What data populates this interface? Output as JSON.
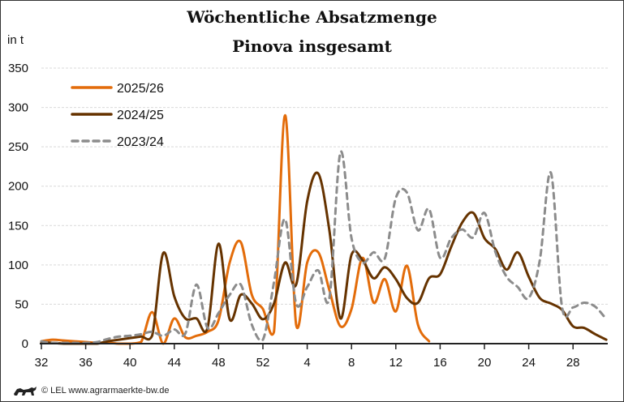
{
  "chart_data": {
    "type": "line",
    "title": [
      "Wöchentliche Absatzmenge",
      "Pinova insgesamt"
    ],
    "ylabel": "in t",
    "xlabel": "",
    "ylim": [
      0,
      350
    ],
    "yticks": [
      0,
      50,
      100,
      150,
      200,
      250,
      300,
      350
    ],
    "x_weeks": [
      32,
      33,
      34,
      35,
      36,
      37,
      38,
      39,
      40,
      41,
      42,
      43,
      44,
      45,
      46,
      47,
      48,
      49,
      50,
      51,
      52,
      1,
      2,
      3,
      4,
      5,
      6,
      7,
      8,
      9,
      10,
      11,
      12,
      13,
      14,
      15,
      16,
      17,
      18,
      19,
      20,
      21,
      22,
      23,
      24,
      25,
      26,
      27,
      28,
      29,
      30,
      31
    ],
    "xtick_labels": [
      "32",
      "36",
      "40",
      "44",
      "48",
      "52",
      "4",
      "8",
      "12",
      "16",
      "20",
      "24",
      "28"
    ],
    "grid": true,
    "legend_position": "top-left",
    "series": [
      {
        "name": "2025/26",
        "color": "#E36C0A",
        "dashed": false,
        "values": [
          3,
          5,
          4,
          3,
          2,
          1,
          1,
          0,
          0,
          2,
          40,
          0,
          32,
          8,
          10,
          15,
          30,
          103,
          129,
          62,
          44,
          15,
          290,
          24,
          103,
          116,
          68,
          22,
          44,
          109,
          52,
          82,
          41,
          99,
          24,
          3
        ]
      },
      {
        "name": "2024/25",
        "color": "#663300",
        "dashed": false,
        "values": [
          2,
          1,
          0,
          0,
          0,
          0,
          3,
          5,
          7,
          9,
          10,
          115,
          60,
          32,
          32,
          20,
          127,
          31,
          62,
          51,
          31,
          51,
          103,
          75,
          181,
          216,
          144,
          32,
          113,
          106,
          83,
          97,
          82,
          58,
          52,
          83,
          88,
          123,
          154,
          166,
          134,
          120,
          94,
          116,
          85,
          58,
          51,
          43,
          22,
          20,
          12,
          5
        ]
      },
      {
        "name": "2023/24",
        "color": "#8C8C8C",
        "dashed": true,
        "values": [
          3,
          1,
          1,
          1,
          1,
          2,
          6,
          9,
          10,
          12,
          15,
          10,
          18,
          13,
          75,
          20,
          39,
          62,
          75,
          24,
          5,
          78,
          158,
          51,
          72,
          93,
          58,
          243,
          134,
          103,
          116,
          108,
          185,
          192,
          144,
          171,
          109,
          134,
          145,
          135,
          166,
          116,
          85,
          72,
          58,
          106,
          217,
          47,
          46,
          52,
          47,
          31
        ]
      }
    ]
  },
  "footer": {
    "text": "© LEL www.agrarmaerkte-bw.de"
  }
}
